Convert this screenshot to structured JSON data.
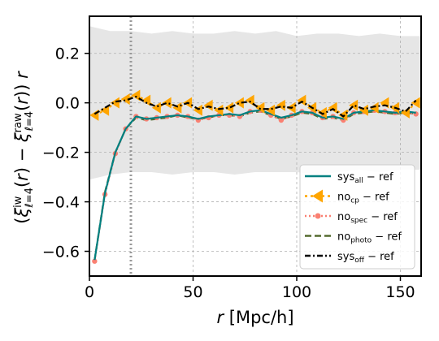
{
  "chart_data": {
    "type": "line",
    "xlabel": "r [Mpc/h]",
    "ylabel": "(ξ^iw_{ℓ=4}(r) − ξ^raw_{ℓ=4}(r)) r",
    "xlim": [
      0,
      160
    ],
    "ylim": [
      -0.7,
      0.35
    ],
    "x_ticks": [
      0,
      50,
      100,
      150
    ],
    "x_tick_labels": [
      "0",
      "50",
      "100",
      "150"
    ],
    "y_ticks": [
      0.2,
      0.0,
      -0.2,
      -0.4,
      -0.6
    ],
    "y_tick_labels": [
      "0.2",
      "0.0",
      "−0.2",
      "−0.4",
      "−0.6"
    ],
    "grid": true,
    "legend_position": "lower-right",
    "vline": {
      "x": 20,
      "style": "dotted",
      "color": "#999999"
    },
    "band": {
      "color": "#e6e6e6",
      "x": [
        0,
        5,
        10,
        20,
        30,
        40,
        50,
        60,
        70,
        80,
        90,
        100,
        110,
        120,
        130,
        140,
        150,
        160
      ],
      "upper": [
        0.31,
        0.3,
        0.29,
        0.29,
        0.28,
        0.29,
        0.28,
        0.28,
        0.29,
        0.28,
        0.29,
        0.27,
        0.28,
        0.28,
        0.27,
        0.28,
        0.27,
        0.27
      ],
      "lower": [
        -0.31,
        -0.3,
        -0.29,
        -0.28,
        -0.28,
        -0.29,
        -0.28,
        -0.28,
        -0.29,
        -0.28,
        -0.28,
        -0.28,
        -0.29,
        -0.28,
        -0.27,
        -0.28,
        -0.27,
        -0.27
      ]
    },
    "x": [
      2.5,
      7.5,
      12.5,
      17.5,
      22.5,
      27.5,
      32.5,
      37.5,
      42.5,
      47.5,
      52.5,
      57.5,
      62.5,
      67.5,
      72.5,
      77.5,
      82.5,
      87.5,
      92.5,
      97.5,
      102.5,
      107.5,
      112.5,
      117.5,
      122.5,
      127.5,
      132.5,
      137.5,
      142.5,
      147.5,
      152.5,
      157.5
    ],
    "series": [
      {
        "name": "sys_all − ref",
        "legend_main": "sys",
        "legend_sub": "all",
        "legend_tail": " − ref",
        "color": "#008080",
        "dash": "",
        "marker": "none",
        "values": [
          -0.635,
          -0.365,
          -0.2,
          -0.105,
          -0.055,
          -0.065,
          -0.06,
          -0.055,
          -0.05,
          -0.055,
          -0.065,
          -0.055,
          -0.05,
          -0.045,
          -0.05,
          -0.035,
          -0.03,
          -0.045,
          -0.06,
          -0.05,
          -0.035,
          -0.04,
          -0.06,
          -0.055,
          -0.065,
          -0.04,
          -0.035,
          -0.03,
          -0.035,
          -0.04,
          -0.035,
          -0.04
        ]
      },
      {
        "name": "no_cp − ref",
        "legend_main": "no",
        "legend_sub": "cp",
        "legend_tail": " − ref",
        "color": "#ffa500",
        "dash": "3,4",
        "marker": "triangle-left",
        "values": [
          -0.05,
          -0.03,
          0.0,
          0.015,
          0.03,
          0.01,
          -0.02,
          0.0,
          -0.02,
          0.0,
          -0.03,
          -0.01,
          -0.03,
          -0.02,
          0.0,
          0.01,
          -0.02,
          -0.03,
          -0.01,
          -0.02,
          0.01,
          -0.02,
          -0.04,
          -0.02,
          -0.05,
          -0.01,
          -0.03,
          -0.02,
          0.0,
          -0.02,
          -0.04,
          0.0
        ]
      },
      {
        "name": "no_spec − ref",
        "legend_main": "no",
        "legend_sub": "spec",
        "legend_tail": " − ref",
        "color": "#fa8072",
        "dash": "2,3",
        "marker": "circle",
        "values": [
          -0.64,
          -0.37,
          -0.205,
          -0.105,
          -0.055,
          -0.065,
          -0.06,
          -0.055,
          -0.05,
          -0.055,
          -0.07,
          -0.06,
          -0.05,
          -0.05,
          -0.055,
          -0.035,
          -0.03,
          -0.05,
          -0.07,
          -0.05,
          -0.035,
          -0.04,
          -0.06,
          -0.055,
          -0.07,
          -0.04,
          -0.035,
          -0.03,
          -0.035,
          -0.04,
          -0.04,
          -0.045
        ]
      },
      {
        "name": "no_photo − ref",
        "legend_main": "no",
        "legend_sub": "photo",
        "legend_tail": " − ref",
        "color": "#556b2f",
        "dash": "8,4",
        "marker": "none",
        "values": [
          -0.635,
          -0.36,
          -0.2,
          -0.105,
          -0.06,
          -0.07,
          -0.065,
          -0.06,
          -0.05,
          -0.06,
          -0.065,
          -0.06,
          -0.05,
          -0.05,
          -0.055,
          -0.04,
          -0.035,
          -0.05,
          -0.065,
          -0.055,
          -0.04,
          -0.045,
          -0.065,
          -0.06,
          -0.07,
          -0.045,
          -0.04,
          -0.035,
          -0.04,
          -0.045,
          -0.04,
          -0.045
        ]
      },
      {
        "name": "sys_off − ref",
        "legend_main": "sys",
        "legend_sub": "off",
        "legend_tail": " − ref",
        "color": "#000000",
        "dash": "7,3,2,3",
        "marker": "none",
        "values": [
          -0.045,
          -0.02,
          0.005,
          0.01,
          0.025,
          0.0,
          -0.015,
          0.0,
          -0.015,
          0.0,
          -0.025,
          -0.015,
          -0.025,
          -0.02,
          0.0,
          0.005,
          -0.025,
          -0.025,
          -0.015,
          -0.02,
          0.005,
          -0.02,
          -0.045,
          -0.025,
          -0.055,
          -0.01,
          -0.025,
          -0.015,
          -0.01,
          -0.02,
          -0.035,
          0.01
        ]
      }
    ]
  }
}
